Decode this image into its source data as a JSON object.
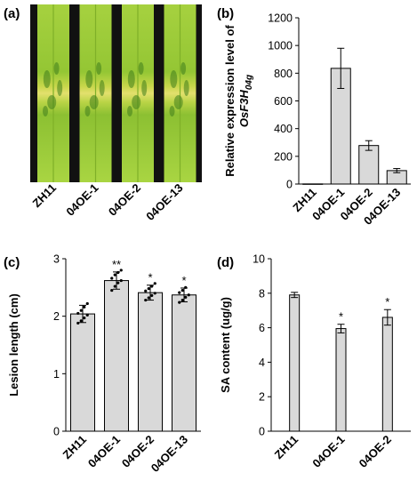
{
  "colors": {
    "bar": "#d9d9d9",
    "stroke": "#000000",
    "leaf_green": "#9fcf3a",
    "leaf_yellow": "#e0e070",
    "gap": "#111111"
  },
  "panel_a": {
    "letter": "(a)",
    "leaves": [
      "ZH11",
      "04OE-1",
      "04OE-2",
      "04OE-13"
    ]
  },
  "chart_data": [
    {
      "id": "b",
      "letter": "(b)",
      "type": "bar",
      "categories": [
        "ZH11",
        "04OE-1",
        "04OE-2",
        "04OE-13"
      ],
      "values": [
        1,
        835,
        278,
        97
      ],
      "errors": [
        0,
        145,
        35,
        15
      ],
      "ylabel_line1": "Relative expression level of",
      "ylabel_line2_main": "OsF3H",
      "ylabel_line2_sub": "04g",
      "ylim": [
        0,
        1200
      ],
      "yticks": [
        0,
        200,
        400,
        600,
        800,
        1000,
        1200
      ],
      "significance": [
        "",
        "",
        "",
        ""
      ],
      "points": [
        [],
        [],
        [],
        []
      ]
    },
    {
      "id": "c",
      "letter": "(c)",
      "type": "bar",
      "categories": [
        "ZH11",
        "04OE-1",
        "04OE-2",
        "04OE-13"
      ],
      "values": [
        2.04,
        2.62,
        2.41,
        2.37
      ],
      "errors": [
        0.15,
        0.15,
        0.13,
        0.12
      ],
      "ylabel": "Lesion length (cm)",
      "ylim": [
        0,
        3
      ],
      "yticks": [
        0,
        1,
        2,
        3
      ],
      "significance": [
        "",
        "**",
        "*",
        "*"
      ],
      "points": [
        [
          1.88,
          1.92,
          1.97,
          2.02,
          2.05,
          2.1,
          2.16,
          2.22
        ],
        [
          2.45,
          2.52,
          2.58,
          2.62,
          2.66,
          2.72,
          2.76,
          2.8
        ],
        [
          2.28,
          2.32,
          2.36,
          2.4,
          2.44,
          2.48,
          2.52,
          2.57
        ],
        [
          2.24,
          2.28,
          2.33,
          2.37,
          2.41,
          2.45,
          2.5
        ]
      ]
    },
    {
      "id": "d",
      "letter": "(d)",
      "type": "bar",
      "categories": [
        "ZH11",
        "04OE-1",
        "04OE-2"
      ],
      "values": [
        7.9,
        5.95,
        6.6
      ],
      "errors": [
        0.15,
        0.25,
        0.45
      ],
      "ylabel": "SA content (ug/g)",
      "ylim": [
        0,
        10
      ],
      "yticks": [
        0,
        2,
        4,
        6,
        8,
        10
      ],
      "significance": [
        "",
        "*",
        "*"
      ],
      "points": [
        [],
        [],
        []
      ]
    }
  ]
}
